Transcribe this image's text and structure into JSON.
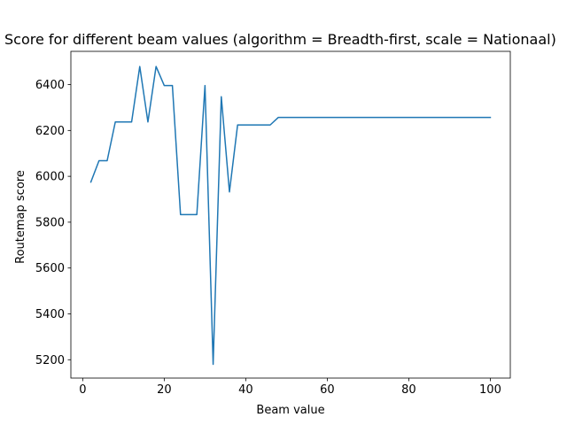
{
  "chart_data": {
    "type": "line",
    "title": "Score for different beam values (algorithm = Breadth-first, scale = Nationaal)",
    "xlabel": "Beam value",
    "ylabel": "Routemap score",
    "xlim": [
      -2.9,
      104.9
    ],
    "ylim": [
      5120,
      6545
    ],
    "xticks": [
      0,
      20,
      40,
      60,
      80,
      100
    ],
    "yticks": [
      5200,
      5400,
      5600,
      5800,
      6000,
      6200,
      6400
    ],
    "grid": false,
    "series": [
      {
        "color": "#1f77b4",
        "x": [
          2,
          4,
          6,
          8,
          10,
          12,
          14,
          16,
          18,
          20,
          22,
          24,
          26,
          28,
          30,
          32,
          34,
          36,
          38,
          40,
          42,
          44,
          46,
          48,
          50,
          52,
          54,
          56,
          58,
          60,
          62,
          64,
          66,
          68,
          70,
          72,
          74,
          76,
          78,
          80,
          82,
          84,
          86,
          88,
          90,
          92,
          94,
          96,
          98,
          100
        ],
        "y": [
          5975,
          6068,
          6068,
          6237,
          6237,
          6237,
          6479,
          6237,
          6479,
          6396,
          6396,
          5833,
          5833,
          5833,
          6396,
          5180,
          6347,
          5932,
          6224,
          6224,
          6224,
          6224,
          6224,
          6257,
          6257,
          6257,
          6257,
          6257,
          6257,
          6257,
          6257,
          6257,
          6257,
          6257,
          6257,
          6257,
          6257,
          6257,
          6257,
          6257,
          6257,
          6257,
          6257,
          6257,
          6257,
          6257,
          6257,
          6257,
          6257,
          6257
        ]
      }
    ]
  }
}
